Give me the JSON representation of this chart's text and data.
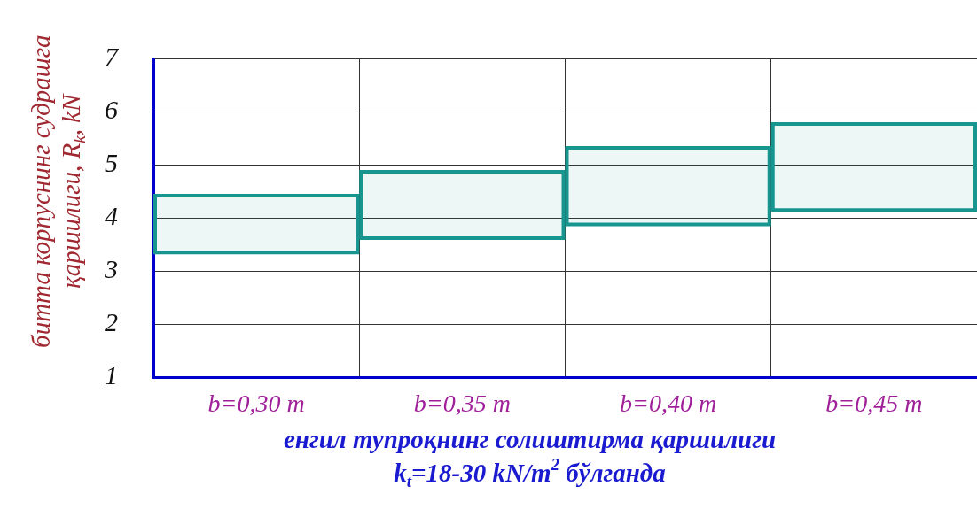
{
  "chart_data": {
    "type": "bar",
    "categories": [
      "b=0,30 m",
      "b=0,35 m",
      "b=0,40 m",
      "b=0,45 m"
    ],
    "base": [
      3.35,
      3.62,
      3.88,
      4.15
    ],
    "values": [
      1.07,
      1.25,
      1.44,
      1.62
    ],
    "color": "#17968f",
    "xlabel": "енгил тупроқнинг солиштирма қаршилиги\nk$_{t}$=18-30 kN/m$^{2}$ бўлганда",
    "ylabel": "битта корпуснинг судрашга\nқаршилиги, R$_{k}$, kN",
    "ylim": [
      1,
      7
    ],
    "yticks": [
      1,
      2,
      3,
      4,
      5,
      6,
      7
    ],
    "grid": true
  }
}
